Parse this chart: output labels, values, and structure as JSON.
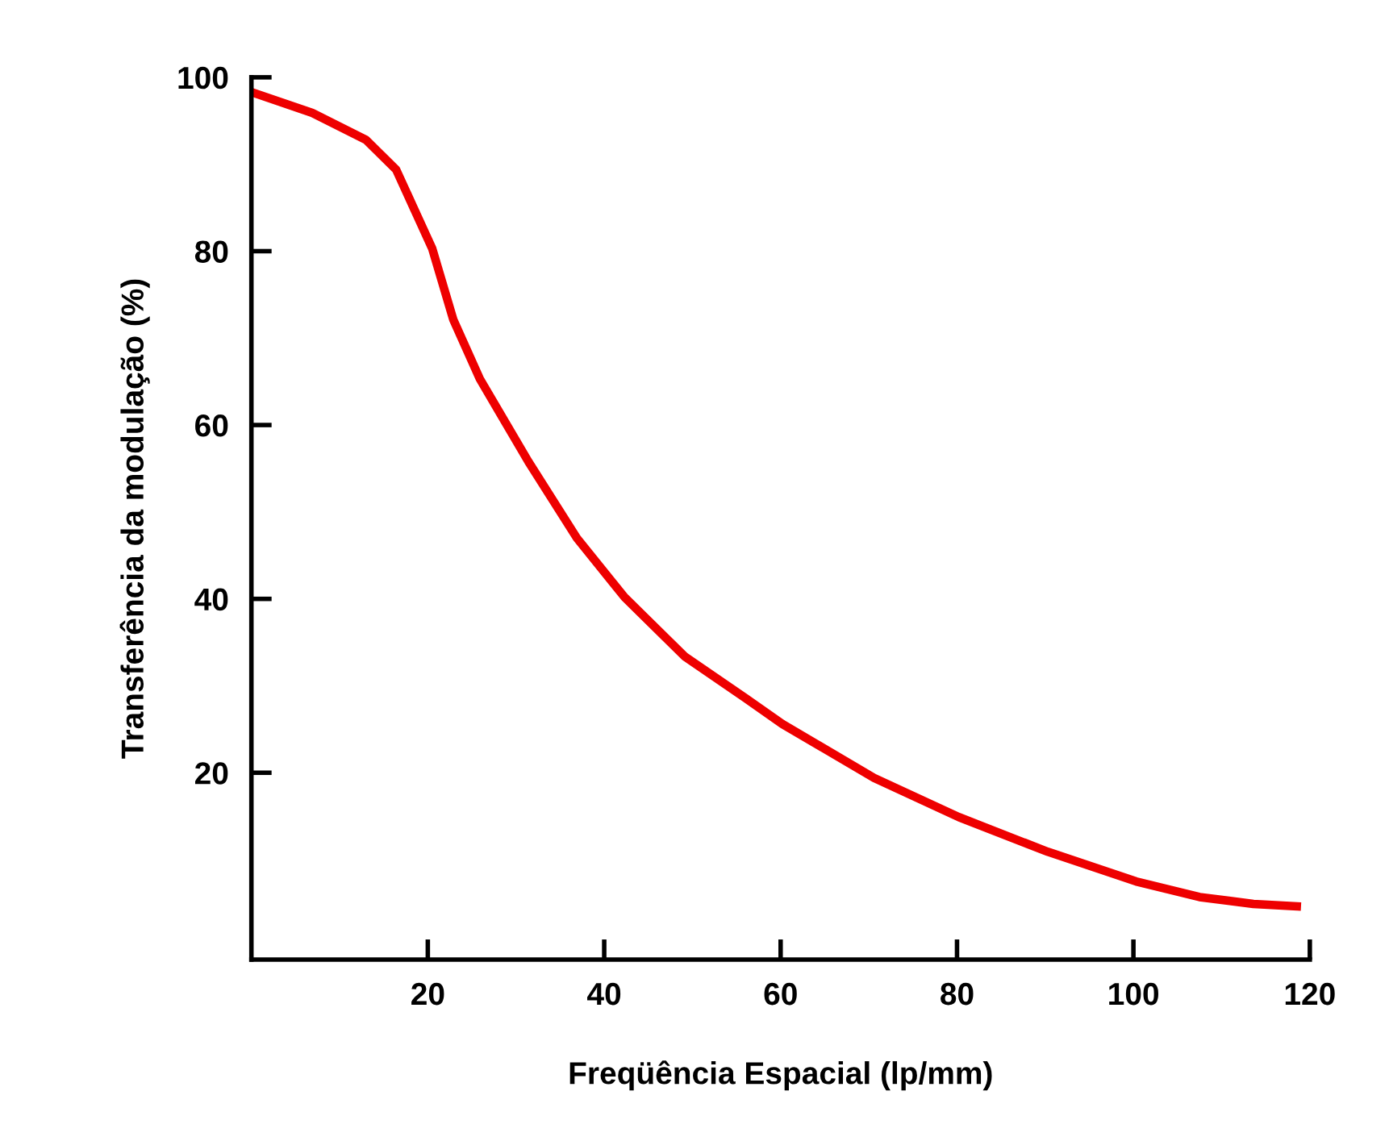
{
  "chart_data": {
    "type": "line",
    "xlabel": "Freqüência Espacial (lp/mm)",
    "ylabel": "Transferência da modulação (%)",
    "x": [
      0,
      6.9,
      13,
      16.4,
      20.5,
      22.9,
      25.9,
      31.4,
      36.9,
      42.3,
      49.1,
      56,
      60.2,
      70.6,
      80.2,
      90.3,
      100.3,
      107.5,
      113.6,
      119
    ],
    "series": [
      {
        "color": "#ee0000",
        "values": [
          98.3,
          95.9,
          92.8,
          89.4,
          80.3,
          72.1,
          65.3,
          55.8,
          47.0,
          40.2,
          33.4,
          28.6,
          25.6,
          19.4,
          14.9,
          10.9,
          7.5,
          5.7,
          4.9,
          4.6
        ]
      }
    ],
    "xlim": [
      0,
      120
    ],
    "xticks": [
      20,
      40,
      60,
      80,
      100,
      120
    ],
    "ylim": [
      -1.5,
      100
    ],
    "yticks": [
      20,
      40,
      60,
      80,
      100
    ],
    "grid": false,
    "marker": "none",
    "line_style": "solid"
  }
}
